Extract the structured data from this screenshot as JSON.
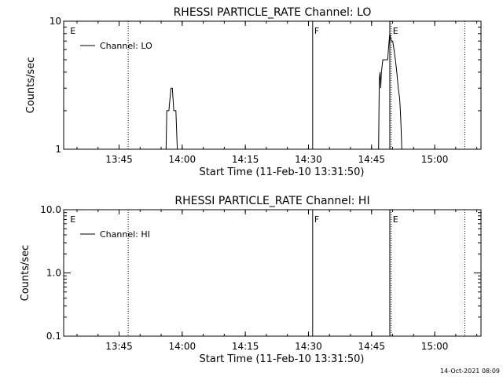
{
  "footer": {
    "timestamp": "14-Oct-2021 08:09"
  },
  "chart_data": [
    {
      "type": "line",
      "title": "RHESSI PARTICLE_RATE Channel: LO",
      "xlabel": "Start Time (11-Feb-10 13:31:50)",
      "ylabel": "Counts/sec",
      "yscale": "log",
      "xlim": [
        "13:31:50",
        "15:11:00"
      ],
      "ylim": [
        1,
        10
      ],
      "x_ticks": [
        "13:45",
        "14:00",
        "14:15",
        "14:30",
        "14:45",
        "15:00"
      ],
      "y_ticks": [
        "1",
        "10"
      ],
      "legend": {
        "entries": [
          "Channel: LO"
        ],
        "position": "top-left"
      },
      "markers": [
        {
          "time": "13:33:00",
          "style": "none",
          "label": "E"
        },
        {
          "time": "13:47:10",
          "style": "dotted",
          "label": ""
        },
        {
          "time": "14:31:00",
          "style": "solid",
          "label": "F"
        },
        {
          "time": "14:49:20",
          "style": "solid",
          "label": ""
        },
        {
          "time": "14:49:40",
          "style": "dotted",
          "label": "E"
        },
        {
          "time": "15:07:10",
          "style": "dotted",
          "label": ""
        }
      ],
      "series": [
        {
          "name": "Channel: LO",
          "segments": [
            [
              [
                "13:56:10",
                1.0
              ],
              [
                "13:56:20",
                2.0
              ],
              [
                "13:56:50",
                2.0
              ],
              [
                "13:57:20",
                3.0
              ],
              [
                "13:57:40",
                3.0
              ],
              [
                "13:58:00",
                2.0
              ],
              [
                "13:58:30",
                2.0
              ],
              [
                "13:58:50",
                1.0
              ]
            ],
            [
              [
                "14:46:40",
                1.0
              ],
              [
                "14:46:50",
                3.5
              ],
              [
                "14:47:00",
                4.0
              ],
              [
                "14:47:10",
                3.0
              ],
              [
                "14:47:20",
                4.0
              ],
              [
                "14:47:40",
                5.0
              ],
              [
                "14:48:30",
                5.0
              ],
              [
                "14:48:50",
                5.0
              ],
              [
                "14:49:00",
                6.0
              ],
              [
                "14:49:10",
                7.0
              ],
              [
                "14:49:20",
                8.0
              ],
              [
                "14:49:40",
                7.0
              ],
              [
                "14:50:00",
                7.0
              ],
              [
                "14:50:20",
                6.0
              ],
              [
                "14:50:40",
                5.0
              ],
              [
                "14:51:00",
                4.0
              ],
              [
                "14:51:20",
                3.0
              ],
              [
                "14:51:40",
                2.5
              ],
              [
                "14:51:50",
                2.0
              ],
              [
                "14:52:00",
                1.5
              ],
              [
                "14:52:10",
                1.0
              ]
            ]
          ]
        }
      ]
    },
    {
      "type": "line",
      "title": "RHESSI PARTICLE_RATE Channel: HI",
      "xlabel": "Start Time (11-Feb-10 13:31:50)",
      "ylabel": "Counts/sec",
      "yscale": "log",
      "xlim": [
        "13:31:50",
        "15:11:00"
      ],
      "ylim": [
        0.1,
        10
      ],
      "x_ticks": [
        "13:45",
        "14:00",
        "14:15",
        "14:30",
        "14:45",
        "15:00"
      ],
      "y_ticks": [
        "0.1",
        "1.0",
        "10.0"
      ],
      "legend": {
        "entries": [
          "Channel: HI"
        ],
        "position": "top-left"
      },
      "markers": [
        {
          "time": "13:33:00",
          "style": "none",
          "label": "E"
        },
        {
          "time": "13:47:10",
          "style": "dotted",
          "label": ""
        },
        {
          "time": "14:31:00",
          "style": "solid",
          "label": "F"
        },
        {
          "time": "14:49:20",
          "style": "solid",
          "label": ""
        },
        {
          "time": "14:49:40",
          "style": "dotted",
          "label": "E"
        },
        {
          "time": "15:07:10",
          "style": "dotted",
          "label": ""
        }
      ],
      "series": [
        {
          "name": "Channel: HI",
          "segments": []
        }
      ]
    }
  ]
}
